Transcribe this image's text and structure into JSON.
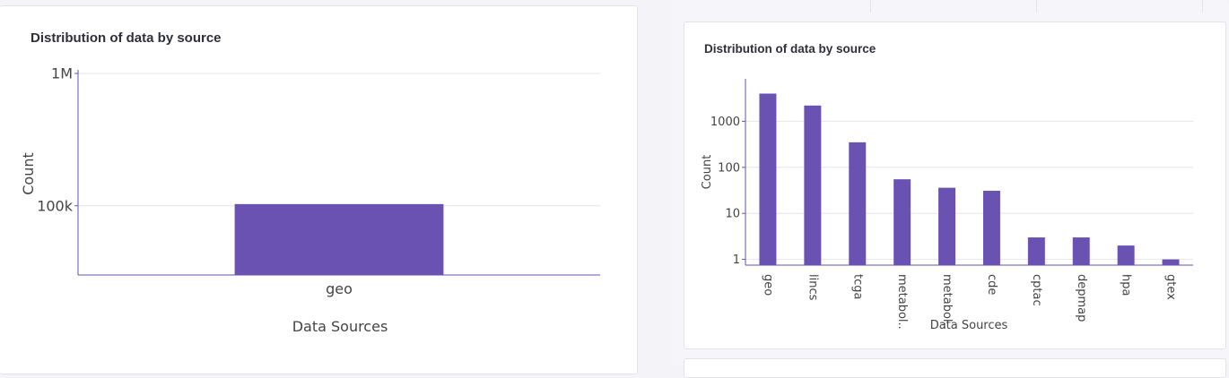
{
  "charts": [
    {
      "card_title": "Distribution of data by source",
      "chart_data": {
        "type": "bar",
        "title": "Distribution of data by source",
        "xlabel": "Data Sources",
        "ylabel": "Count",
        "yscale": "log",
        "ylim": [
          30000,
          1000000
        ],
        "y_ticks": [
          100000,
          1000000
        ],
        "y_tick_labels": [
          "100k",
          "1M"
        ],
        "grid": true,
        "categories": [
          "geo"
        ],
        "values": [
          103000
        ],
        "bar_color": "#6a52b3"
      }
    },
    {
      "card_title": "Distribution of data by source",
      "chart_data": {
        "type": "bar",
        "title": "Distribution of data by source",
        "xlabel": "Data Sources",
        "ylabel": "Count",
        "yscale": "log",
        "ylim": [
          0.75,
          7000
        ],
        "y_ticks": [
          1,
          10,
          100,
          1000
        ],
        "y_tick_labels": [
          "1",
          "10",
          "100",
          "1000"
        ],
        "grid": true,
        "categories": [
          "geo",
          "lincs",
          "tcga",
          "metabol..",
          "metabol..",
          "cde",
          "cptac",
          "depmap",
          "hpa",
          "gtex"
        ],
        "values": [
          4000,
          2200,
          350,
          55,
          36,
          31,
          3,
          3,
          2,
          1
        ],
        "bar_color": "#6a52b3"
      }
    }
  ]
}
